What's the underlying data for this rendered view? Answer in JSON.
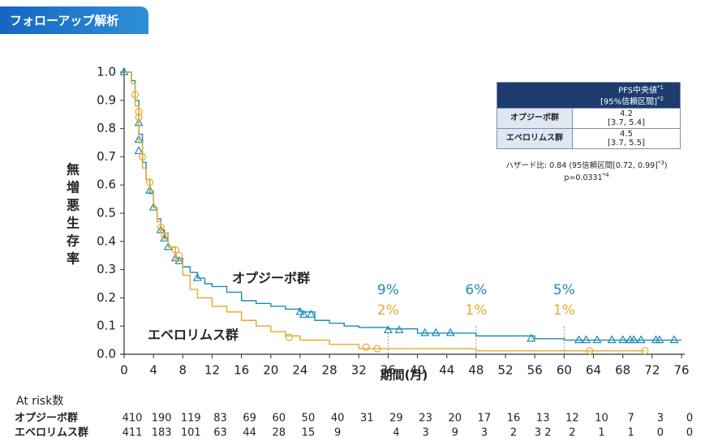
{
  "header": {
    "title": "フォローアップ解析"
  },
  "chart_data": {
    "type": "km",
    "ylabel": "無増悪生存率",
    "xlabel": "期間(月)",
    "xlim": [
      0,
      76
    ],
    "xticks": [
      0,
      4,
      8,
      12,
      16,
      20,
      24,
      28,
      32,
      36,
      40,
      44,
      48,
      52,
      56,
      60,
      64,
      68,
      72,
      76
    ],
    "ylim": [
      0,
      1
    ],
    "yticks": [
      {
        "value": 0,
        "label": "0.0"
      },
      0.1,
      0.2,
      0.3,
      0.4,
      0.5,
      0.6,
      0.7,
      0.8,
      0.9,
      {
        "value": 1,
        "label": "1.0"
      }
    ],
    "series": [
      {
        "name": "オプジーボ群",
        "color": "#1b8cb5",
        "marker": "triangle",
        "x": [
          0,
          1,
          1.5,
          2,
          2.5,
          3,
          3.5,
          4,
          4.5,
          5,
          5.5,
          6,
          7,
          8,
          9,
          10,
          11,
          12,
          14,
          16,
          18,
          20,
          22,
          24,
          26,
          28,
          30,
          32,
          36,
          40,
          48,
          56,
          60,
          76
        ],
        "values": [
          1,
          0.97,
          0.9,
          0.78,
          0.68,
          0.62,
          0.57,
          0.52,
          0.48,
          0.44,
          0.41,
          0.38,
          0.34,
          0.31,
          0.29,
          0.27,
          0.25,
          0.24,
          0.22,
          0.19,
          0.18,
          0.17,
          0.16,
          0.15,
          0.12,
          0.11,
          0.1,
          0.095,
          0.09,
          0.075,
          0.065,
          0.055,
          0.05,
          0.05
        ],
        "censor_x": [
          0,
          2,
          2,
          2,
          3.5,
          4,
          5,
          5.5,
          6,
          7,
          7.5,
          10,
          24,
          24.5,
          25.5,
          36,
          37.5,
          41,
          42.5,
          44.5,
          55.5,
          62,
          63,
          64.5,
          66.5,
          68,
          69,
          69.5,
          70.5,
          72.5,
          73,
          75
        ],
        "censor_values": [
          1,
          0.82,
          0.76,
          0.72,
          0.58,
          0.52,
          0.44,
          0.41,
          0.38,
          0.34,
          0.33,
          0.27,
          0.15,
          0.14,
          0.14,
          0.085,
          0.085,
          0.075,
          0.075,
          0.075,
          0.055,
          0.05,
          0.05,
          0.05,
          0.05,
          0.05,
          0.05,
          0.05,
          0.05,
          0.05,
          0.05,
          0.05
        ]
      },
      {
        "name": "エベロリムス群",
        "color": "#e6a82e",
        "marker": "circle",
        "x": [
          0,
          1,
          1.5,
          2,
          2.5,
          3,
          3.5,
          4,
          4.5,
          5,
          6,
          7,
          8,
          9,
          10,
          12,
          14,
          16,
          18,
          20,
          22,
          24,
          28,
          32,
          36,
          48,
          60,
          71
        ],
        "values": [
          1,
          0.96,
          0.88,
          0.75,
          0.66,
          0.62,
          0.58,
          0.52,
          0.47,
          0.43,
          0.38,
          0.33,
          0.28,
          0.23,
          0.2,
          0.17,
          0.15,
          0.12,
          0.1,
          0.08,
          0.065,
          0.05,
          0.035,
          0.02,
          0.02,
          0.012,
          0.012,
          0.012
        ],
        "censor_x": [
          1.5,
          2,
          2,
          2.5,
          3.5,
          5,
          5.5,
          7,
          7.5,
          22.5,
          33,
          34.5,
          63.5,
          71
        ],
        "censor_values": [
          0.92,
          0.86,
          0.84,
          0.7,
          0.61,
          0.45,
          0.42,
          0.37,
          0.35,
          0.06,
          0.025,
          0.02,
          0.012,
          0.012
        ]
      }
    ],
    "milestones": [
      {
        "x": 36,
        "labels": [
          "9%",
          "2%"
        ]
      },
      {
        "x": 48,
        "labels": [
          "6%",
          "1%"
        ]
      },
      {
        "x": 60,
        "labels": [
          "5%",
          "1%"
        ]
      }
    ]
  },
  "summary": {
    "header": [
      "PFS中央値",
      "*1",
      "[95%信頼区間]",
      "*2"
    ],
    "rows": [
      [
        "オプジーボ群",
        "4.2",
        "[3.7, 5.4]"
      ],
      [
        "エベロリムス群",
        "4.5",
        "[3.7, 5.5]"
      ]
    ],
    "hazard": "ハザード比: 0.84 (95信頼区間[0.72, 0.99]",
    "hazard_sup": "*3",
    "hazard_end": ")",
    "p": "p=0.0331",
    "p_sup": "*4"
  },
  "at_risk": {
    "title": "At risk数",
    "rows": [
      {
        "name": "オプジーボ群",
        "values": [
          410,
          190,
          119,
          83,
          69,
          60,
          50,
          40,
          31,
          29,
          23,
          20,
          17,
          16,
          13,
          12,
          10,
          7,
          3,
          0
        ]
      },
      {
        "name": "エベロリムス群",
        "values": [
          411,
          183,
          101,
          63,
          44,
          28,
          15,
          9,
          null,
          4,
          3,
          9,
          3,
          2,
          "3 2",
          2,
          1,
          1,
          0,
          0
        ]
      }
    ]
  }
}
